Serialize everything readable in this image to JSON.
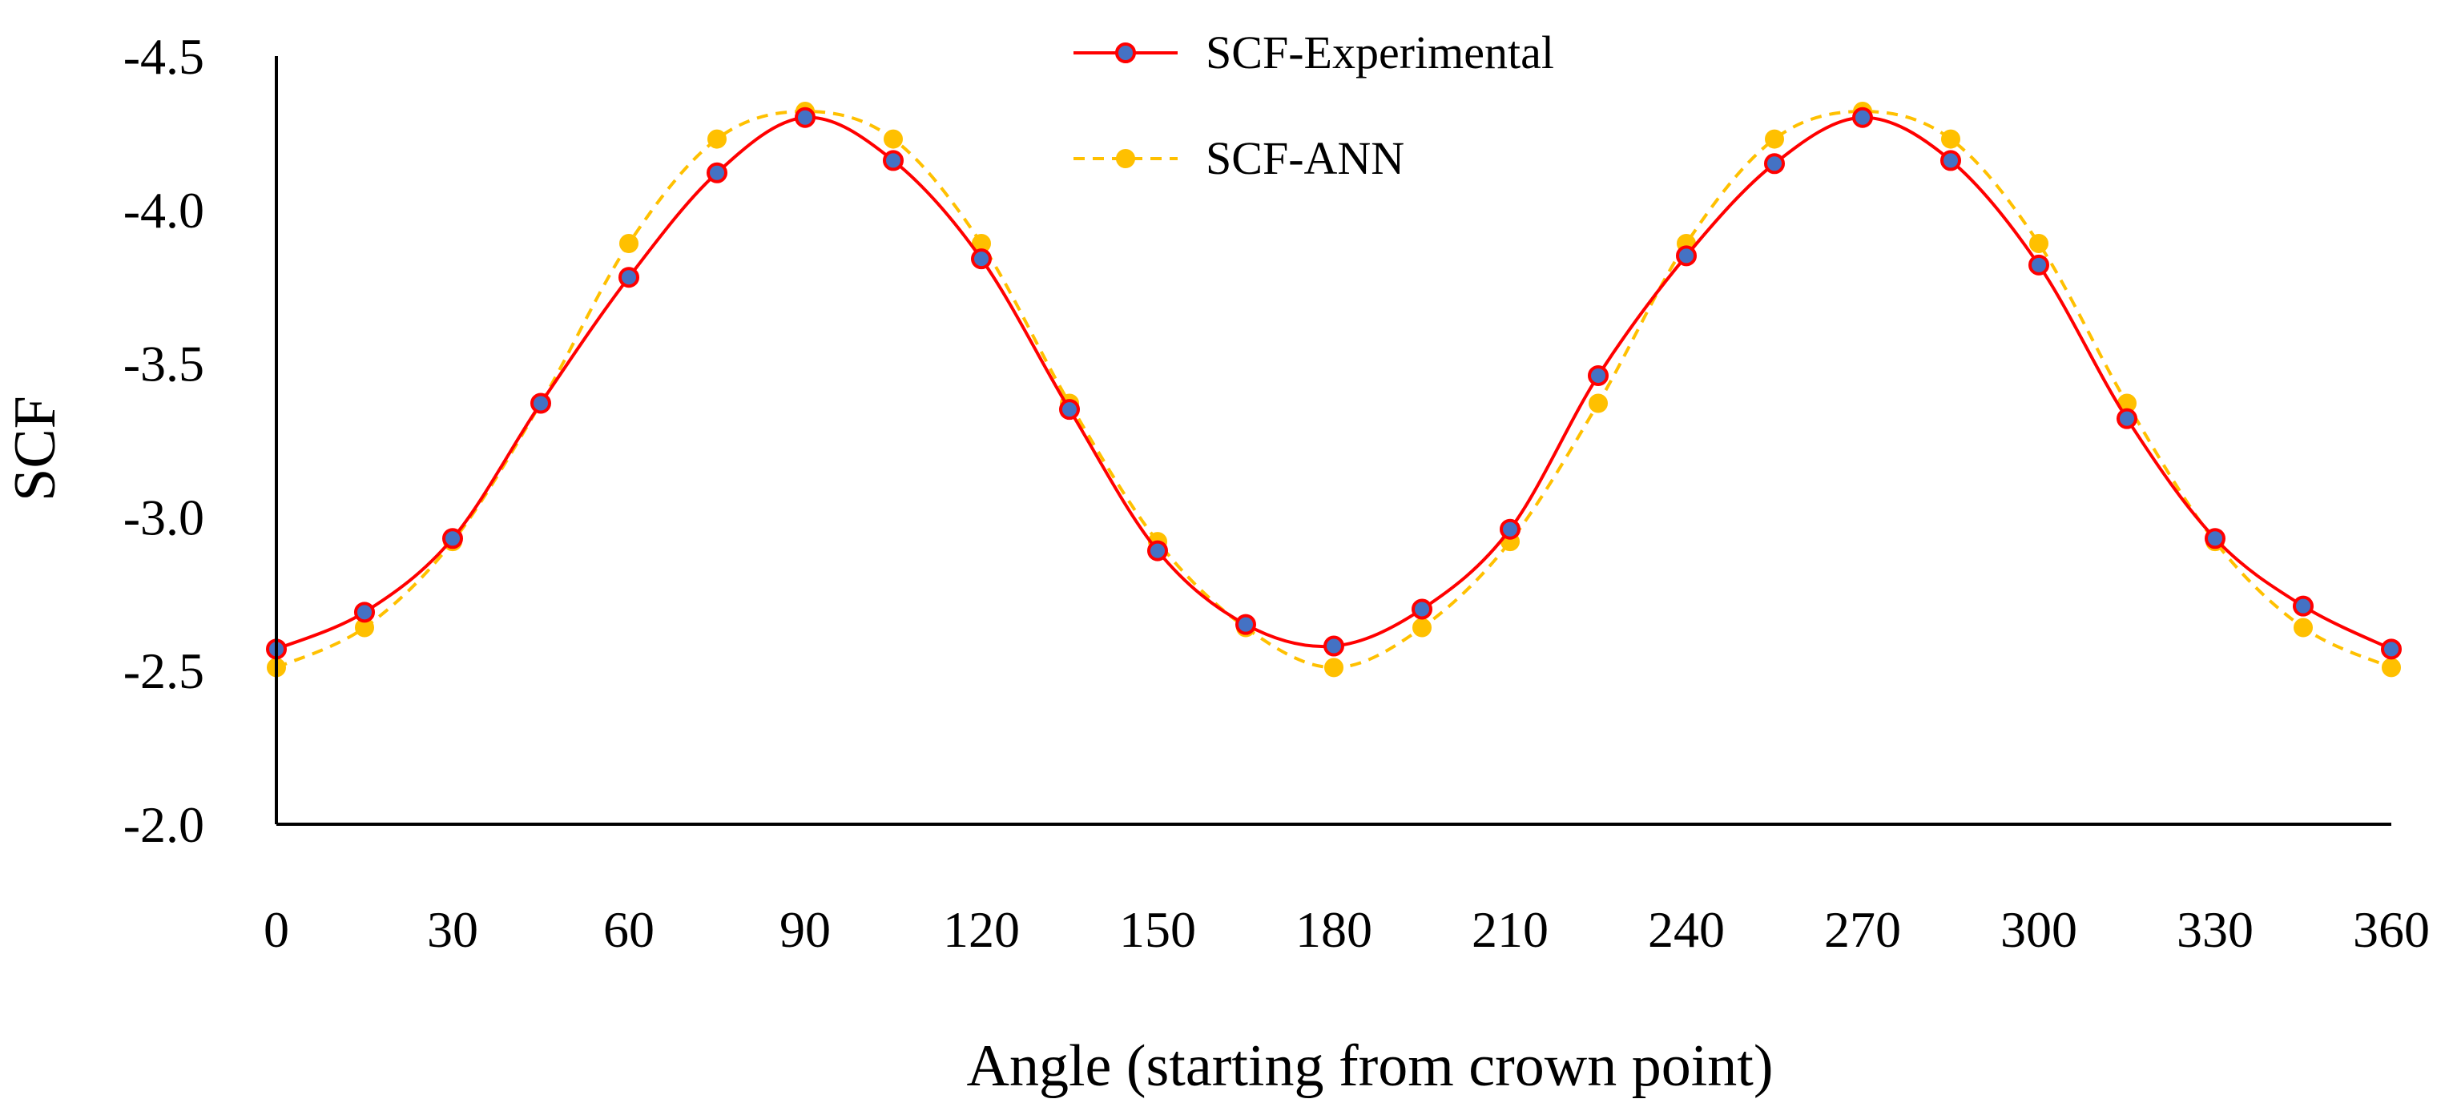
{
  "chart_data": {
    "type": "line",
    "title": "",
    "xlabel": "Angle (starting from crown point)",
    "ylabel": "SCF",
    "x": [
      0,
      15,
      30,
      45,
      60,
      75,
      90,
      105,
      120,
      135,
      150,
      165,
      180,
      195,
      210,
      225,
      240,
      255,
      270,
      285,
      300,
      315,
      330,
      345,
      360
    ],
    "xlim": [
      0,
      360
    ],
    "ylim": [
      -2.0,
      -4.5
    ],
    "x_ticks": [
      0,
      30,
      60,
      90,
      120,
      150,
      180,
      210,
      240,
      270,
      300,
      330,
      360
    ],
    "x_tick_labels": [
      "0",
      "30",
      "60",
      "90",
      "120",
      "150",
      "180",
      "210",
      "240",
      "270",
      "300",
      "330",
      "360"
    ],
    "y_ticks": [
      -2.0,
      -2.5,
      -3.0,
      -3.5,
      -4.0,
      -4.5
    ],
    "y_tick_labels": [
      "-2.0",
      "-2.5",
      "-3.0",
      "-3.5",
      "-4.0",
      "-4.5"
    ],
    "grid": false,
    "legend_position": "top-center",
    "series": [
      {
        "name": "SCF-Experimental",
        "line_style": "solid",
        "line_color": "#ff0000",
        "marker": "circle",
        "marker_fill": "#4472c4",
        "values": [
          -2.57,
          -2.69,
          -2.93,
          -3.37,
          -3.78,
          -4.12,
          -4.3,
          -4.16,
          -3.84,
          -3.35,
          -2.89,
          -2.65,
          -2.58,
          -2.7,
          -2.96,
          -3.46,
          -3.85,
          -4.15,
          -4.3,
          -4.16,
          -3.82,
          -3.32,
          -2.93,
          -2.71,
          -2.57
        ]
      },
      {
        "name": "SCF-ANN",
        "line_style": "dashed",
        "line_color": "#ffc000",
        "marker": "circle",
        "marker_fill": "#ffc000",
        "values": [
          -2.51,
          -2.64,
          -2.92,
          -3.37,
          -3.89,
          -4.23,
          -4.32,
          -4.23,
          -3.89,
          -3.37,
          -2.92,
          -2.64,
          -2.51,
          -2.64,
          -2.92,
          -3.37,
          -3.89,
          -4.23,
          -4.32,
          -4.23,
          -3.89,
          -3.37,
          -2.92,
          -2.64,
          -2.51
        ]
      }
    ]
  }
}
